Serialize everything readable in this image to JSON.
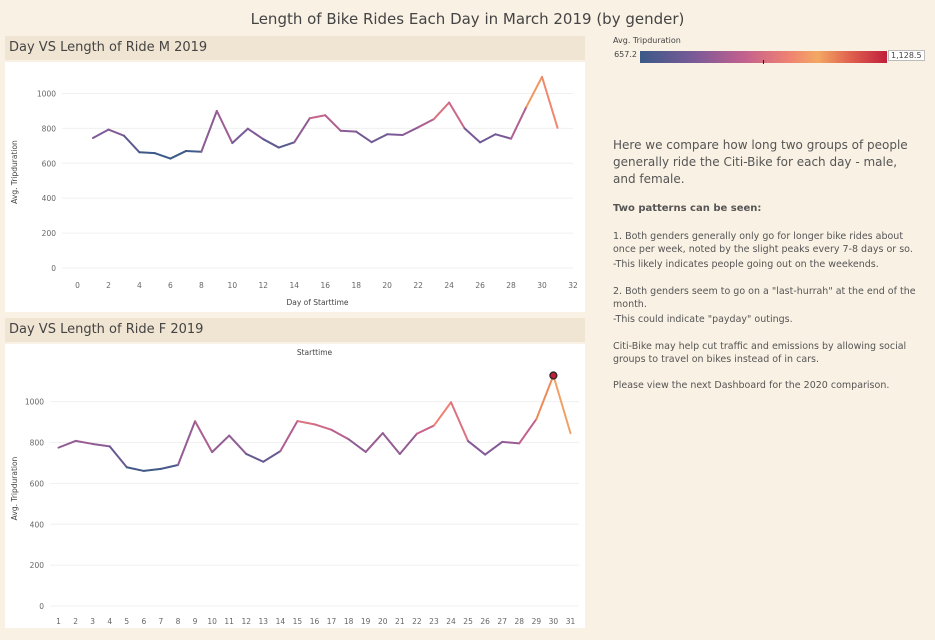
{
  "dashboard_title": "Length of Bike Rides Each Day in March 2019 (by gender)",
  "legend": {
    "title": "Avg. Tripduration",
    "min_label": "657.2",
    "max_label": "1,128.5",
    "min": 657.2,
    "max": 1128.5
  },
  "description": {
    "intro": "Here we compare how long two groups of people generally ride the Citi-Bike for each day - male, and female.",
    "patterns_heading": "Two patterns can be seen:",
    "pattern1": "1. Both genders generally only go for longer bike rides about once per week, noted by the slight peaks every 7-8 days or so.",
    "pattern1_note": "-This likely indicates people going out on the weekends.",
    "pattern2": "2. Both genders seem to go on a \"last-hurrah\" at the end of the month.",
    "pattern2_note": "-This could indicate \"payday\" outings.",
    "citibike": "Citi-Bike may help cut traffic and emissions by allowing social groups to travel on bikes instead of in cars.",
    "next": "Please view the next Dashboard for the 2020 comparison."
  },
  "chart_data": [
    {
      "type": "line",
      "title": "Day VS Length of Ride M 2019",
      "xlabel": "Day of Starttime",
      "ylabel": "Avg. Tripduration",
      "xlim": [
        -1,
        32
      ],
      "ylim": [
        0,
        1100
      ],
      "x_ticks": [
        0,
        2,
        4,
        6,
        8,
        10,
        12,
        14,
        16,
        18,
        20,
        22,
        24,
        26,
        28,
        30,
        32
      ],
      "y_ticks": [
        0,
        200,
        400,
        600,
        800,
        1000
      ],
      "x": [
        1,
        2,
        3,
        4,
        5,
        6,
        7,
        8,
        9,
        10,
        11,
        12,
        13,
        14,
        15,
        16,
        17,
        18,
        19,
        20,
        21,
        22,
        23,
        24,
        25,
        26,
        27,
        28,
        29,
        30,
        31
      ],
      "values": [
        745,
        793,
        758,
        663,
        658,
        627,
        670,
        666,
        900,
        716,
        798,
        738,
        690,
        720,
        858,
        875,
        786,
        781,
        721,
        766,
        762,
        806,
        852,
        948,
        800,
        720,
        766,
        741,
        925,
        1095,
        803
      ]
    },
    {
      "type": "line",
      "title": "Day VS Length of Ride F 2019",
      "top_label": "Starttime",
      "ylabel": "Avg. Tripduration",
      "xlim": [
        0.5,
        31.5
      ],
      "ylim": [
        0,
        1150
      ],
      "x_ticks": [
        1,
        2,
        3,
        4,
        5,
        6,
        7,
        8,
        9,
        10,
        11,
        12,
        13,
        14,
        15,
        16,
        17,
        18,
        19,
        20,
        21,
        22,
        23,
        24,
        25,
        26,
        27,
        28,
        29,
        30,
        31
      ],
      "y_ticks": [
        0,
        200,
        400,
        600,
        800,
        1000
      ],
      "x": [
        1,
        2,
        3,
        4,
        5,
        6,
        7,
        8,
        9,
        10,
        11,
        12,
        13,
        14,
        15,
        16,
        17,
        18,
        19,
        20,
        21,
        22,
        23,
        24,
        25,
        26,
        27,
        28,
        29,
        30,
        31
      ],
      "values": [
        775,
        808,
        793,
        781,
        679,
        661,
        671,
        690,
        904,
        753,
        834,
        744,
        706,
        758,
        905,
        889,
        862,
        816,
        754,
        846,
        744,
        843,
        883,
        997,
        807,
        741,
        803,
        796,
        914,
        1128,
        846
      ],
      "highlight_day": 30
    }
  ]
}
